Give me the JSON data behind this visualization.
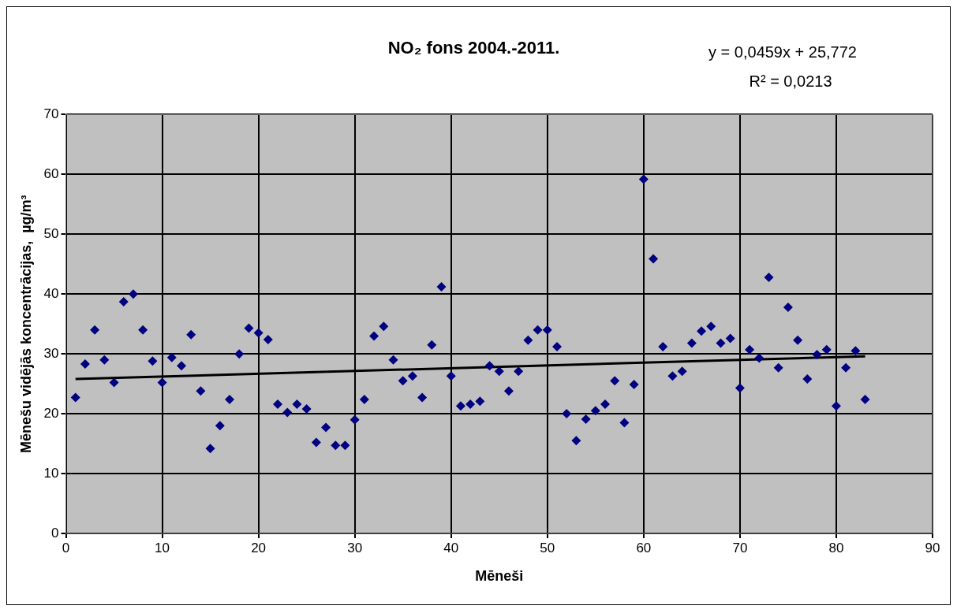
{
  "chart_data": {
    "type": "scatter",
    "title": "NO₂ fons 2004.-2011.",
    "xlabel": "Mēneši",
    "ylabel": "Mēnešu vidējās koncentrācijas,  µg/m³",
    "annotations": [
      "y = 0,0459x + 25,772",
      "R² = 0,0213"
    ],
    "x": [
      1,
      2,
      3,
      4,
      5,
      6,
      7,
      8,
      9,
      10,
      11,
      12,
      13,
      14,
      15,
      16,
      17,
      18,
      19,
      20,
      21,
      22,
      23,
      24,
      25,
      26,
      27,
      28,
      29,
      30,
      31,
      32,
      33,
      34,
      35,
      36,
      37,
      38,
      39,
      40,
      41,
      42,
      43,
      44,
      45,
      46,
      47,
      48,
      49,
      50,
      51,
      52,
      53,
      54,
      55,
      56,
      57,
      58,
      59,
      60,
      61,
      62,
      63,
      64,
      65,
      66,
      67,
      68,
      69,
      70,
      71,
      72,
      73,
      74,
      75,
      76,
      77,
      78,
      79,
      80,
      81,
      82,
      83
    ],
    "series": [
      {
        "color": "#000080",
        "marker": "diamond",
        "values": [
          22.7,
          28.3,
          34,
          29,
          25.2,
          38.7,
          40,
          34,
          28.8,
          25.2,
          29.4,
          28,
          33.2,
          23.8,
          14.2,
          18,
          22.4,
          30,
          34.3,
          33.5,
          32.4,
          21.6,
          20.2,
          21.6,
          20.8,
          15.2,
          17.7,
          14.7,
          14.7,
          19,
          22.4,
          33,
          34.6,
          29,
          25.5,
          26.3,
          22.7,
          31.5,
          41.2,
          26.3,
          21.3,
          21.6,
          22.1,
          28,
          27.1,
          23.8,
          27.1,
          32.3,
          34,
          34,
          31.2,
          20,
          15.5,
          19.1,
          20.5,
          21.6,
          25.5,
          18.5,
          24.9,
          59.2,
          45.9,
          31.2,
          26.3,
          27.1,
          31.8,
          33.8,
          34.6,
          31.8,
          32.6,
          24.3,
          30.7,
          29.3,
          42.8,
          27.7,
          37.8,
          32.3,
          25.8,
          29.9,
          30.7,
          21.3,
          27.7,
          30.5,
          22.4
        ]
      },
      {
        "type": "line",
        "color": "#000000",
        "marker": "none",
        "x": [
          1,
          83
        ],
        "values": [
          25.8,
          29.6
        ]
      }
    ],
    "xlim": [
      0,
      90
    ],
    "xticks": [
      0,
      10,
      20,
      30,
      40,
      50,
      60,
      70,
      80,
      90
    ],
    "ylim": [
      0,
      70
    ],
    "yticks": [
      0,
      10,
      20,
      30,
      40,
      50,
      60,
      70
    ],
    "grid": true,
    "legend": false,
    "line_style": "solid"
  }
}
